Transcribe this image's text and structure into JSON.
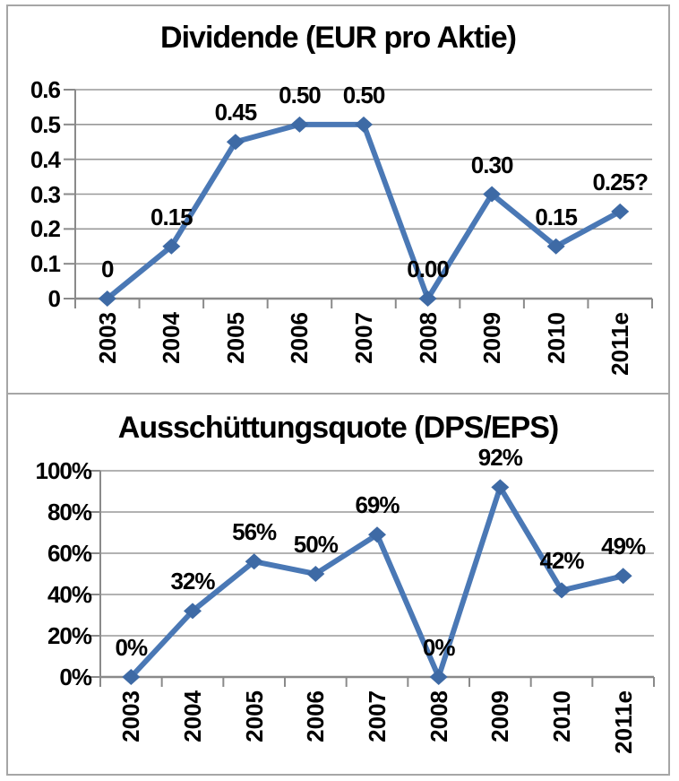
{
  "colors": {
    "line": "#4a78b5",
    "marker": "#3e6aa5",
    "gridline": "#999999",
    "axis": "#8a8a8a",
    "frame_border": "#a6a6a6",
    "text": "#000000",
    "background": "#ffffff"
  },
  "chart_data": [
    {
      "type": "line",
      "title": "Dividende (EUR pro Aktie)",
      "categories": [
        "2003",
        "2004",
        "2005",
        "2006",
        "2007",
        "2008",
        "2009",
        "2010",
        "2011e"
      ],
      "values": [
        0,
        0.15,
        0.45,
        0.5,
        0.5,
        0.0,
        0.3,
        0.15,
        0.25
      ],
      "data_labels": [
        "0",
        "0.15",
        "0.45",
        "0.50",
        "0.50",
        "0.00",
        "0.30",
        "0.15",
        "0.25?"
      ],
      "ylim": [
        0,
        0.6
      ],
      "yticks": [
        0,
        0.1,
        0.2,
        0.3,
        0.4,
        0.5,
        0.6
      ],
      "ytick_labels": [
        "0",
        "0.1",
        "0.2",
        "0.3",
        "0.4",
        "0.5",
        "0.6"
      ],
      "xlabel": "",
      "ylabel": "",
      "grid": true,
      "legend": "none",
      "marker": "diamond"
    },
    {
      "type": "line",
      "title": "Ausschüttungsquote (DPS/EPS)",
      "categories": [
        "2003",
        "2004",
        "2005",
        "2006",
        "2007",
        "2008",
        "2009",
        "2010",
        "2011e"
      ],
      "values": [
        0,
        32,
        56,
        50,
        69,
        0,
        92,
        42,
        49
      ],
      "data_labels": [
        "0%",
        "32%",
        "56%",
        "50%",
        "69%",
        "0%",
        "92%",
        "42%",
        "49%"
      ],
      "ylim": [
        0,
        100
      ],
      "yticks": [
        0,
        20,
        40,
        60,
        80,
        100
      ],
      "ytick_labels": [
        "0%",
        "20%",
        "40%",
        "60%",
        "80%",
        "100%"
      ],
      "xlabel": "",
      "ylabel": "",
      "grid": true,
      "legend": "none",
      "marker": "diamond"
    }
  ]
}
